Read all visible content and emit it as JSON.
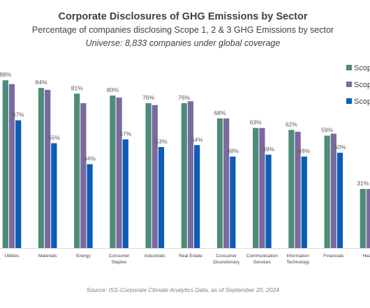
{
  "chart_data": {
    "type": "bar",
    "title": "Corporate Disclosures of GHG Emissions by Sector",
    "subtitle": "Percentage of companies disclosing Scope 1, 2 & 3 GHG Emissions by sector",
    "universe_note": "Universe: 8,833 companies under global coverage",
    "source": "Source: ISS-Corporate Climate Analytics Data, as of September 20, 2024",
    "categories": [
      [
        "Utilities"
      ],
      [
        "Materials"
      ],
      [
        "Energy"
      ],
      [
        "Consumer",
        "Staples"
      ],
      [
        "Industrials"
      ],
      [
        "Real Estate"
      ],
      [
        "Consumer",
        "Discretionary"
      ],
      [
        "Communication",
        "Services"
      ],
      [
        "Information",
        "Technology"
      ],
      [
        "Financials"
      ],
      [
        "Health"
      ]
    ],
    "series": [
      {
        "name": "Scope",
        "color": "#4e8b79",
        "values": [
          88,
          84,
          81,
          80,
          76,
          76,
          68,
          63,
          62,
          59,
          31
        ],
        "labels": [
          "88%",
          "84%",
          "81%",
          "80%",
          "76%",
          "76%",
          "68%",
          "63%",
          "62%",
          "59%",
          "31%"
        ]
      },
      {
        "name": "Scope",
        "color": "#7a6aa0",
        "values": [
          86,
          83,
          76,
          79,
          75,
          77,
          68,
          63,
          61,
          60,
          31
        ],
        "labels": []
      },
      {
        "name": "Scope",
        "color": "#0c5db5",
        "values": [
          67,
          55,
          44,
          57,
          53,
          54,
          48,
          49,
          48,
          50,
          null
        ],
        "labels": [
          "67%",
          "55%",
          "44%",
          "57%",
          "53%",
          "54%",
          "48%",
          "49%",
          "48%",
          "50%",
          ""
        ]
      }
    ],
    "ylim": [
      0,
      100
    ],
    "grid": false,
    "legend_position": "right"
  }
}
